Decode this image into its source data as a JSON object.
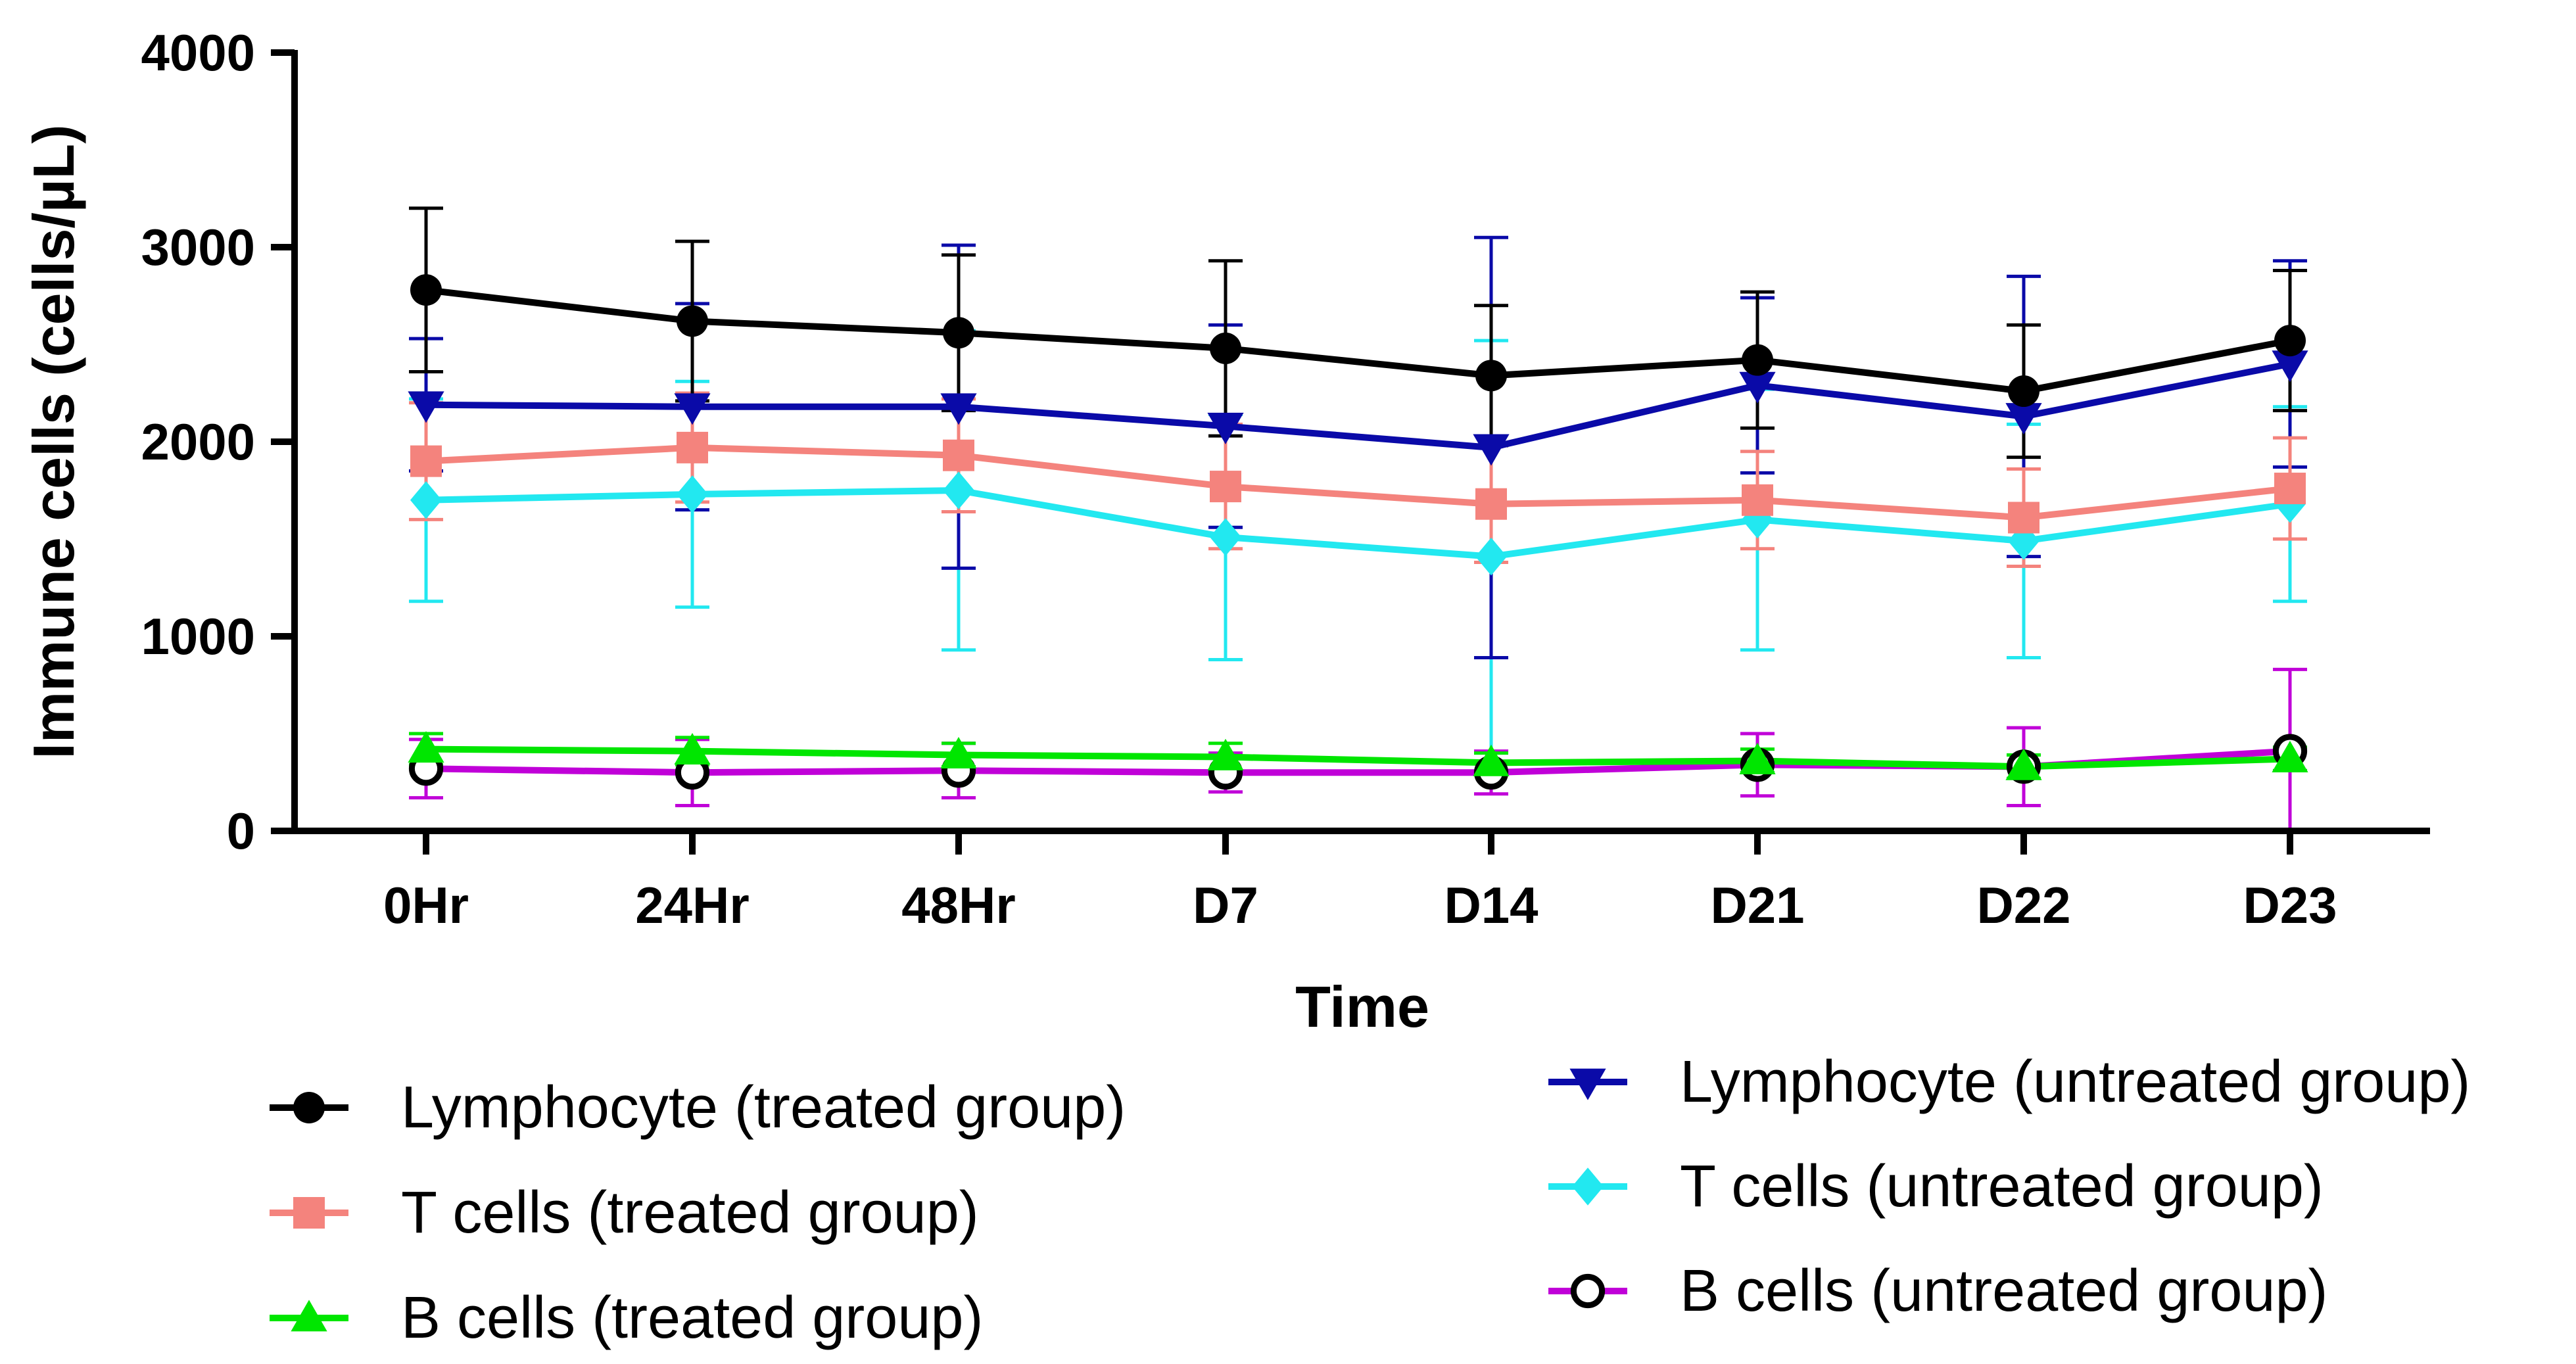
{
  "chart_data": {
    "type": "line",
    "xlabel": "Time",
    "ylabel": "Immune cells (cells/µL)",
    "ylim": [
      0,
      4000
    ],
    "yticks": [
      0,
      1000,
      2000,
      3000,
      4000
    ],
    "categories": [
      "0Hr",
      "24Hr",
      "48Hr",
      "D7",
      "D14",
      "D21",
      "D22",
      "D23"
    ],
    "series": [
      {
        "name": "Lymphocyte (treated group)",
        "color": "#000000",
        "marker": "circle",
        "values": [
          2780,
          2620,
          2560,
          2480,
          2340,
          2420,
          2260,
          2520
        ],
        "errors": [
          420,
          410,
          400,
          450,
          360,
          350,
          340,
          360
        ]
      },
      {
        "name": "T cells (treated group)",
        "color": "#f4837d",
        "marker": "square",
        "values": [
          1900,
          1970,
          1930,
          1770,
          1680,
          1700,
          1610,
          1760
        ],
        "errors": [
          300,
          280,
          290,
          320,
          300,
          250,
          250,
          260
        ]
      },
      {
        "name": "B cells (treated group)",
        "color": "#00e600",
        "marker": "triangle-up",
        "values": [
          420,
          410,
          390,
          380,
          350,
          360,
          330,
          370
        ],
        "errors": [
          80,
          70,
          60,
          70,
          50,
          60,
          60,
          60
        ]
      },
      {
        "name": "Lymphocyte (untreated group)",
        "color": "#0a0aa8",
        "marker": "triangle-down",
        "values": [
          2190,
          2180,
          2180,
          2080,
          1970,
          2290,
          2130,
          2400
        ],
        "errors": [
          340,
          530,
          830,
          520,
          1080,
          450,
          720,
          530
        ]
      },
      {
        "name": "T cells (untreated group)",
        "color": "#22e8f0",
        "marker": "diamond",
        "values": [
          1700,
          1730,
          1750,
          1510,
          1410,
          1600,
          1490,
          1680
        ],
        "errors": [
          520,
          580,
          820,
          630,
          1110,
          670,
          600,
          500
        ]
      },
      {
        "name": "B cells (untreated group)",
        "color": "#c000d8",
        "marker": "open-circle",
        "values": [
          320,
          300,
          310,
          300,
          300,
          340,
          330,
          410
        ],
        "errors": [
          150,
          170,
          140,
          100,
          110,
          160,
          200,
          420
        ]
      }
    ],
    "legend": {
      "left": [
        "Lymphocyte (treated group)",
        "T cells (treated group)",
        "B cells (treated group)"
      ],
      "right": [
        "Lymphocyte (untreated group)",
        "T cells (untreated group)",
        "B cells (untreated group)"
      ]
    }
  }
}
